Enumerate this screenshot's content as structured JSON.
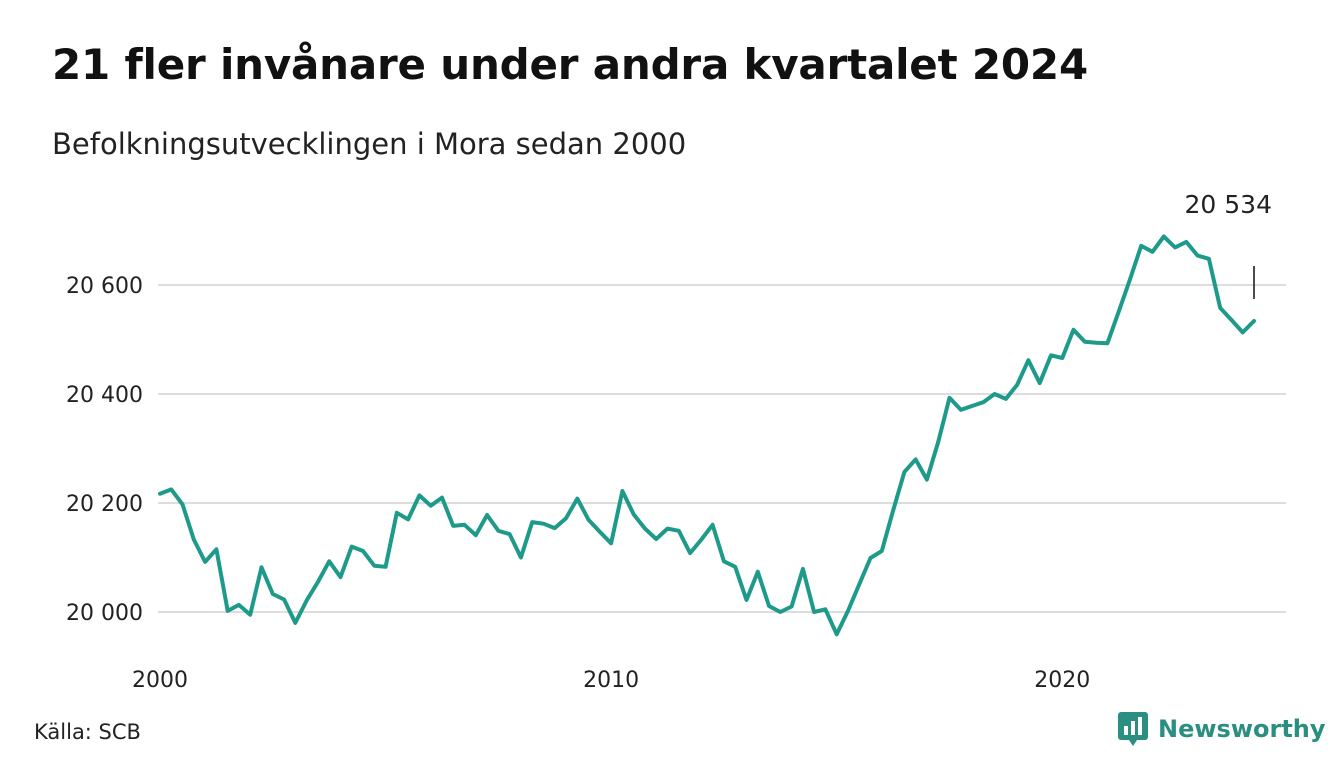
{
  "title": "21 fler invånare under andra kvartalet 2024",
  "subtitle": "Befolkningsutvecklingen i Mora sedan 2000",
  "source": "Källa: SCB",
  "brand": "Newsworthy",
  "colors": {
    "line": "#1e9a8a",
    "grid": "#dddddd",
    "brand": "#2a8f80"
  },
  "chart_data": {
    "type": "line",
    "title": "21 fler invånare under andra kvartalet 2024",
    "subtitle": "Befolkningsutvecklingen i Mora sedan 2000",
    "xlabel": "",
    "ylabel": "",
    "x_ticks": [
      2000,
      2010,
      2020
    ],
    "x_tick_labels": [
      "2000",
      "2010",
      "2020"
    ],
    "y_ticks": [
      20000,
      20200,
      20400,
      20600
    ],
    "y_tick_labels": [
      "20 000",
      "20 200",
      "20 400",
      "20 600"
    ],
    "xlim": [
      2000,
      2024.5
    ],
    "ylim": [
      19960,
      20700
    ],
    "grid": true,
    "annotation": {
      "label": "20 534",
      "x": 2024.25,
      "y": 20534
    },
    "series": [
      {
        "x": [
          2000,
          2000.25,
          2000.5,
          2000.75,
          2001,
          2001.25,
          2001.5,
          2001.75,
          2002,
          2002.25,
          2002.5,
          2002.75,
          2003,
          2003.25,
          2003.5,
          2003.75,
          2004,
          2004.25,
          2004.5,
          2004.75,
          2005,
          2005.25,
          2005.5,
          2005.75,
          2006,
          2006.25,
          2006.5,
          2006.75,
          2007,
          2007.25,
          2007.5,
          2007.75,
          2008,
          2008.25,
          2008.5,
          2008.75,
          2009,
          2009.25,
          2009.5,
          2009.75,
          2010,
          2010.25,
          2010.5,
          2010.75,
          2011,
          2011.25,
          2011.5,
          2011.75,
          2012,
          2012.25,
          2012.5,
          2012.75,
          2013,
          2013.25,
          2013.5,
          2013.75,
          2014,
          2014.25,
          2014.5,
          2014.75,
          2015,
          2015.25,
          2015.5,
          2015.75,
          2016,
          2016.25,
          2016.5,
          2016.75,
          2017,
          2017.25,
          2017.5,
          2017.75,
          2018,
          2018.25,
          2018.5,
          2018.75,
          2019,
          2019.25,
          2019.5,
          2019.75,
          2020,
          2020.25,
          2020.5,
          2020.75,
          2021,
          2021.25,
          2021.5,
          2021.75,
          2022,
          2022.25,
          2022.5,
          2022.75,
          2023,
          2023.25,
          2023.5,
          2023.75,
          2024,
          2024.25
        ],
        "values": [
          20217,
          20225,
          20197,
          20133,
          20092,
          20115,
          20002,
          20013,
          19995,
          20082,
          20033,
          20023,
          19980,
          20021,
          20055,
          20093,
          20064,
          20120,
          20112,
          20085,
          20083,
          20182,
          20170,
          20214,
          20195,
          20210,
          20158,
          20160,
          20141,
          20178,
          20149,
          20143,
          20100,
          20165,
          20162,
          20154,
          20172,
          20208,
          20169,
          20147,
          20126,
          20222,
          20179,
          20153,
          20134,
          20153,
          20149,
          20108,
          20133,
          20160,
          20093,
          20083,
          20022,
          20074,
          20011,
          20000,
          20010,
          20079,
          20000,
          20005,
          19959,
          20002,
          20051,
          20099,
          20112,
          20186,
          20257,
          20280,
          20243,
          20312,
          20393,
          20371,
          20378,
          20385,
          20400,
          20391,
          20417,
          20462,
          20420,
          20471,
          20466,
          20518,
          20496,
          20494,
          20493,
          20551,
          20610,
          20672,
          20661,
          20689,
          20669,
          20679,
          20654,
          20648,
          20558,
          20536,
          20513,
          20534
        ]
      }
    ]
  }
}
